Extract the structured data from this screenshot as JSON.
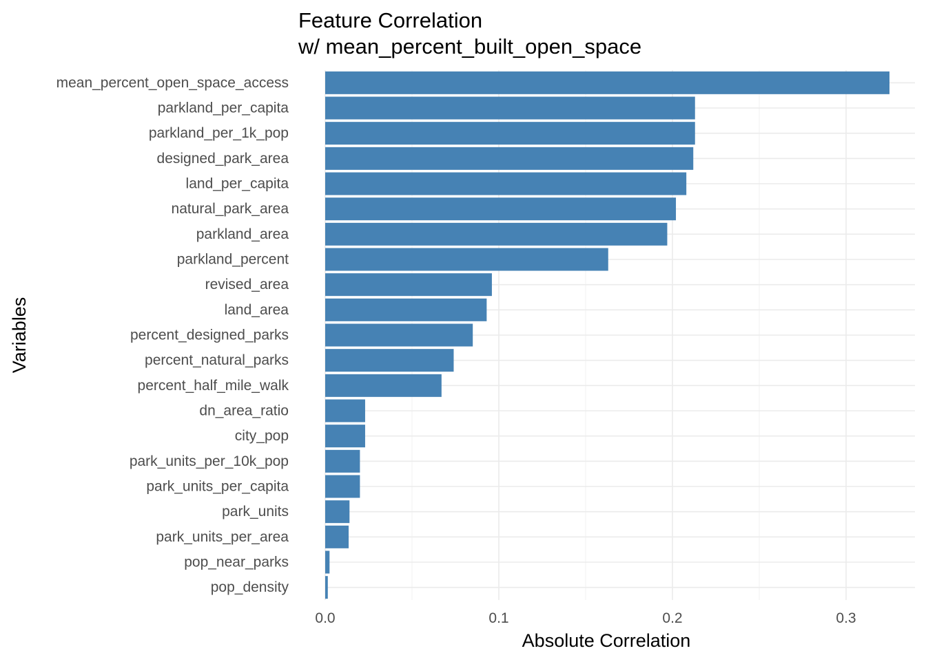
{
  "chart_data": {
    "type": "bar",
    "orientation": "horizontal",
    "title": "Feature Correlation",
    "subtitle": "w/ mean_percent_built_open_space",
    "xlabel": "Absolute Correlation",
    "ylabel": "Variables",
    "xlim": [
      0,
      0.34
    ],
    "xticks": [
      0.0,
      0.1,
      0.2,
      0.3
    ],
    "xtick_labels": [
      "0.0",
      "0.1",
      "0.2",
      "0.3"
    ],
    "grid": true,
    "legend": "none",
    "bar_color": "#4682B4",
    "categories": [
      "mean_percent_open_space_access",
      "parkland_per_capita",
      "parkland_per_1k_pop",
      "designed_park_area",
      "land_per_capita",
      "natural_park_area",
      "parkland_area",
      "parkland_percent",
      "revised_area",
      "land_area",
      "percent_designed_parks",
      "percent_natural_parks",
      "percent_half_mile_walk",
      "dn_area_ratio",
      "city_pop",
      "park_units_per_10k_pop",
      "park_units_per_capita",
      "park_units",
      "park_units_per_area",
      "pop_near_parks",
      "pop_density"
    ],
    "values": [
      0.325,
      0.213,
      0.213,
      0.212,
      0.208,
      0.202,
      0.197,
      0.163,
      0.096,
      0.093,
      0.085,
      0.074,
      0.067,
      0.023,
      0.023,
      0.02,
      0.02,
      0.014,
      0.0135,
      0.0025,
      0.0015
    ]
  }
}
